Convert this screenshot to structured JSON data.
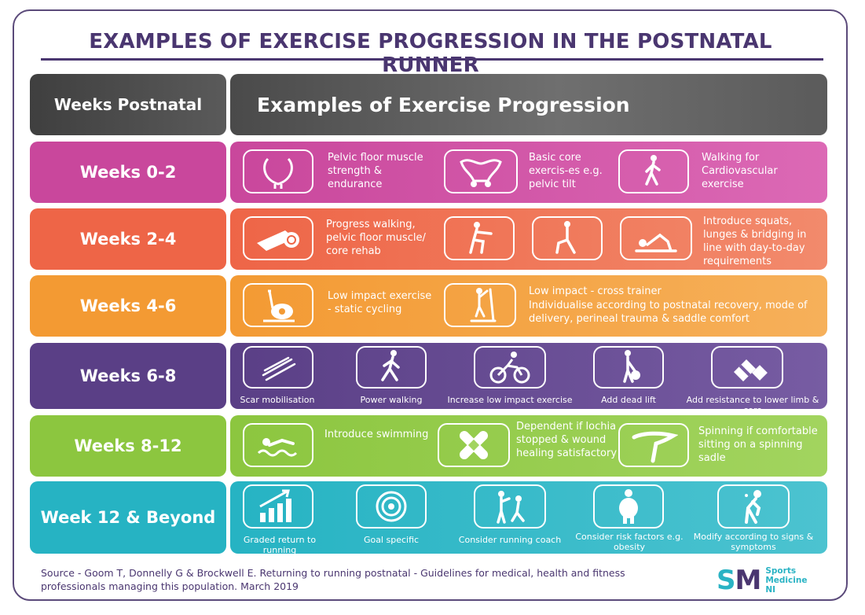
{
  "title": "EXAMPLES OF EXERCISE PROGRESSION IN THE POSTNATAL RUNNER",
  "header": {
    "col1": "Weeks Postnatal",
    "col2": "Examples of Exercise Progression"
  },
  "colors": {
    "row1": "#c9479c",
    "row2": "#ee6547",
    "row3": "#f39a33",
    "row4": "#5a3f86",
    "row5": "#8cc63f",
    "row6": "#26b3c3",
    "brand": "#4a3670"
  },
  "rows": [
    {
      "label": "Weeks 0-2",
      "texts": [
        "Pelvic floor muscle strength & endurance",
        "Basic core exercis-es e.g. pelvic tilt",
        "Walking for Cardiovascular exercise"
      ],
      "icons": [
        "bladder-icon",
        "pelvis-icon",
        "walking-icon"
      ]
    },
    {
      "label": "Weeks 2-4",
      "texts": [
        "Progress walking, pelvic floor muscle/ core rehab",
        "Introduce squats, lunges & bridging in line with day-to-day requirements"
      ],
      "icons": [
        "exercise-mat-icon",
        "squat-icon",
        "lunge-icon",
        "bridge-icon"
      ]
    },
    {
      "label": "Weeks 4-6",
      "texts": [
        "Low impact exercise - static cycling",
        "Low impact - cross trainer",
        "Individualise according to postnatal recovery, mode of delivery, perineal trauma & saddle comfort"
      ],
      "icons": [
        "exercise-bike-icon",
        "cross-trainer-icon"
      ]
    },
    {
      "label": "Weeks 6-8",
      "captions": [
        "Scar mobilisation",
        "Power walking",
        "Increase low impact exercise",
        "Add dead lift",
        "Add resistance to lower limb & core"
      ],
      "icons": [
        "scar-icon",
        "power-walking-icon",
        "cycling-icon",
        "dead-lift-icon",
        "dumbbell-icon"
      ]
    },
    {
      "label": "Weeks 8-12",
      "texts": [
        "Introduce swimming",
        "Dependent if lochia stopped & wound healing satisfactory",
        "Spinning if comfortable sitting on a spinning sadle"
      ],
      "icons": [
        "swimming-icon",
        "plaster-icon",
        "saddle-icon"
      ]
    },
    {
      "label": "Week 12 & Beyond",
      "captions": [
        "Graded return to running",
        "Goal specific",
        "Consider running coach",
        "Consider risk factors e.g. obesity",
        "Modify according to signs & symptoms"
      ],
      "icons": [
        "growth-chart-icon",
        "target-icon",
        "coach-icon",
        "obesity-icon",
        "symptoms-icon"
      ]
    }
  ],
  "source": "Source - Goom T, Donnelly G & Brockwell E. Returning to running postnatal - Guidelines for medical, health and fitness professionals managing this population. March 2019",
  "logo": {
    "mark_s": "S",
    "mark_m": "M",
    "line1": "Sports",
    "line2": "Medicine",
    "line3": "NI"
  }
}
